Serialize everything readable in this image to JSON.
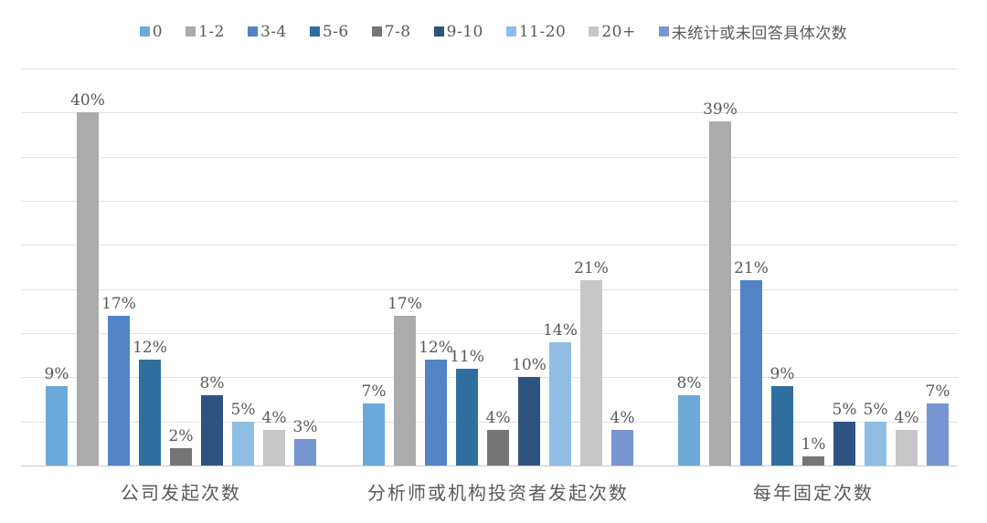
{
  "chart_data": {
    "type": "bar",
    "title": "",
    "xlabel": "",
    "ylabel": "",
    "categories": [
      "公司发起次数",
      "分析师或机构投资者发起次数",
      "每年固定次数"
    ],
    "series": [
      {
        "name": "0",
        "color": "#6CA9DB",
        "values": [
          9,
          7,
          8
        ]
      },
      {
        "name": "1-2",
        "color": "#ABABAB",
        "values": [
          40,
          17,
          39
        ]
      },
      {
        "name": "3-4",
        "color": "#5183C6",
        "values": [
          17,
          12,
          21
        ]
      },
      {
        "name": "5-6",
        "color": "#2F6F9F",
        "values": [
          12,
          11,
          9
        ]
      },
      {
        "name": "7-8",
        "color": "#757575",
        "values": [
          2,
          4,
          1
        ]
      },
      {
        "name": "9-10",
        "color": "#2F5381",
        "values": [
          8,
          10,
          5
        ]
      },
      {
        "name": "11-20",
        "color": "#8FBDE3",
        "values": [
          5,
          14,
          5
        ]
      },
      {
        "name": "20+",
        "color": "#C7C7C7",
        "values": [
          4,
          21,
          4
        ]
      },
      {
        "name": "未统计或未回答具体次数",
        "color": "#7696D2",
        "values": [
          3,
          4,
          7
        ]
      }
    ],
    "value_suffix": "%",
    "data_labels": true,
    "ylim": [
      0,
      45
    ],
    "gridline_step": 5,
    "grid": true,
    "legend_position": "top"
  },
  "layout_colors": {
    "background": "#FFFFFF",
    "text": "#595959",
    "gridline": "#E2E2E2",
    "axis_line": "#C9C9C9"
  }
}
